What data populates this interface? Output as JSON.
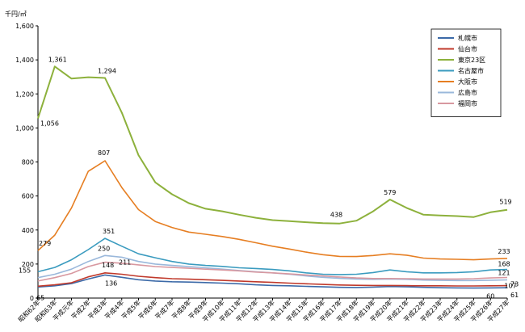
{
  "chart_data": {
    "type": "line",
    "ylabel": "千円/㎡",
    "ylim": [
      0,
      1600
    ],
    "yticks": [
      0,
      200,
      400,
      600,
      800,
      1000,
      1200,
      1400,
      1600
    ],
    "ytick_labels": [
      "0",
      "200",
      "400",
      "600",
      "800",
      "1,000",
      "1,200",
      "1,400",
      "1,600"
    ],
    "grid": false,
    "legend_position": "top-right",
    "categories": [
      "昭和62年",
      "昭和63年",
      "平成元年",
      "平成2年",
      "平成3年",
      "平成4年",
      "平成5年",
      "平成6年",
      "平成7年",
      "平成8年",
      "平成9年",
      "平成10年",
      "平成11年",
      "平成12年",
      "平成13年",
      "平成14年",
      "平成15年",
      "平成16年",
      "平成17年",
      "平成18年",
      "平成19年",
      "平成20年",
      "平成21年",
      "平成22年",
      "平成23年",
      "平成24年",
      "平成25年",
      "平成26年",
      "平成27年"
    ],
    "series": [
      {
        "name": "札幌市",
        "color": "#3c6aa8",
        "values": [
          65,
          72,
          85,
          112,
          136,
          122,
          108,
          100,
          96,
          94,
          91,
          88,
          84,
          78,
          74,
          72,
          69,
          66,
          63,
          62,
          64,
          68,
          66,
          63,
          61,
          60,
          59,
          60,
          61
        ]
      },
      {
        "name": "仙台市",
        "color": "#c0392b",
        "values": [
          70,
          78,
          90,
          125,
          148,
          140,
          128,
          120,
          114,
          111,
          108,
          104,
          100,
          96,
          92,
          88,
          84,
          80,
          77,
          75,
          74,
          74,
          73,
          72,
          72,
          71,
          71,
          72,
          73
        ]
      },
      {
        "name": "東京23区",
        "color": "#8db13c",
        "values": [
          1056,
          1361,
          1290,
          1298,
          1294,
          1090,
          840,
          680,
          610,
          558,
          525,
          510,
          490,
          472,
          458,
          452,
          446,
          440,
          438,
          455,
          510,
          579,
          530,
          490,
          485,
          482,
          476,
          504,
          519
        ]
      },
      {
        "name": "名古屋市",
        "color": "#3a9bbf",
        "values": [
          155,
          180,
          225,
          285,
          351,
          305,
          260,
          237,
          215,
          200,
          192,
          186,
          178,
          174,
          168,
          160,
          148,
          140,
          138,
          140,
          150,
          165,
          155,
          148,
          148,
          150,
          155,
          165,
          168
        ]
      },
      {
        "name": "大阪市",
        "color": "#e67e22",
        "values": [
          279,
          370,
          530,
          745,
          807,
          650,
          520,
          450,
          415,
          388,
          375,
          362,
          345,
          325,
          305,
          288,
          270,
          255,
          245,
          244,
          250,
          260,
          252,
          235,
          230,
          228,
          225,
          230,
          233
        ]
      },
      {
        "name": "広島市",
        "color": "#9ab8db",
        "values": [
          120,
          140,
          170,
          215,
          250,
          240,
          215,
          200,
          192,
          185,
          178,
          170,
          162,
          155,
          148,
          140,
          130,
          122,
          116,
          112,
          110,
          112,
          110,
          106,
          104,
          103,
          103,
          105,
          107
        ]
      },
      {
        "name": "福岡市",
        "color": "#d898a0",
        "values": [
          100,
          120,
          145,
          185,
          211,
          205,
          195,
          185,
          180,
          175,
          170,
          165,
          160,
          153,
          148,
          142,
          136,
          130,
          124,
          118,
          115,
          115,
          114,
          112,
          112,
          112,
          114,
          118,
          121
        ]
      }
    ],
    "annotations": [
      {
        "series": 2,
        "index": 0,
        "text": "1,056"
      },
      {
        "series": 2,
        "index": 1,
        "text": "1,361"
      },
      {
        "series": 2,
        "index": 4,
        "text": "1,294"
      },
      {
        "series": 2,
        "index": 18,
        "text": "438"
      },
      {
        "series": 2,
        "index": 21,
        "text": "579"
      },
      {
        "series": 2,
        "index": 28,
        "text": "519"
      },
      {
        "series": 4,
        "index": 0,
        "text": "279"
      },
      {
        "series": 4,
        "index": 4,
        "text": "807"
      },
      {
        "series": 4,
        "index": 28,
        "text": "233"
      },
      {
        "series": 3,
        "index": 0,
        "text": "155"
      },
      {
        "series": 3,
        "index": 4,
        "text": "351"
      },
      {
        "series": 3,
        "index": 28,
        "text": "168"
      },
      {
        "series": 5,
        "index": 4,
        "text": "250"
      },
      {
        "series": 5,
        "index": 28,
        "text": "107"
      },
      {
        "series": 6,
        "index": 4,
        "text": "211"
      },
      {
        "series": 6,
        "index": 28,
        "text": "121"
      },
      {
        "series": 1,
        "index": 4,
        "text": "148"
      },
      {
        "series": 1,
        "index": 28,
        "text": "73"
      },
      {
        "series": 0,
        "index": 0,
        "text": "65"
      },
      {
        "series": 0,
        "index": 4,
        "text": "136"
      },
      {
        "series": 0,
        "index": 27,
        "text": "60"
      },
      {
        "series": 0,
        "index": 28,
        "text": "61"
      }
    ]
  }
}
